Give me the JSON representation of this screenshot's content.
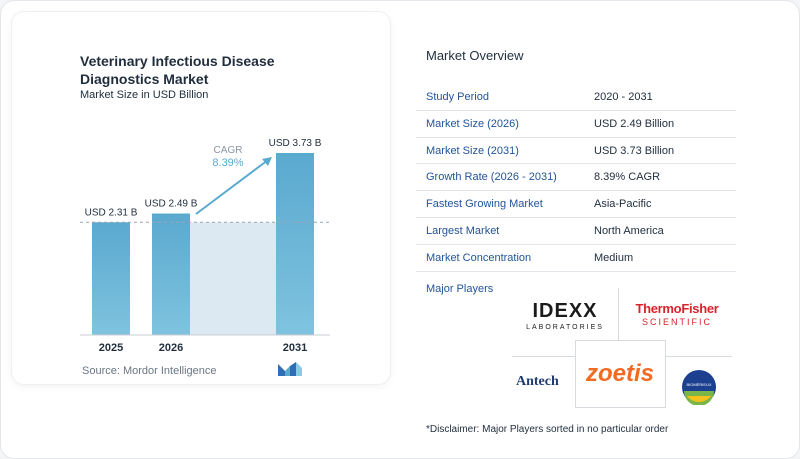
{
  "chart_data": {
    "type": "bar",
    "title": "Veterinary Infectious Disease Diagnostics Market",
    "subtitle": "Market Size in USD Billion",
    "categories": [
      "2025",
      "2026",
      "2031"
    ],
    "values": [
      2.31,
      2.49,
      3.73
    ],
    "data_labels": [
      "USD 2.31 B",
      "USD 2.49 B",
      "USD 3.73 B"
    ],
    "cagr_label": "CAGR",
    "cagr_value": "8.39%",
    "colors": {
      "bar": "#5aa9cf",
      "bar_light": "#7fc3df",
      "band": "#dce9f3",
      "arrow": "#5aa9cf",
      "dashed": "#9aa5b1"
    }
  },
  "source": "Source: Mordor Intelligence",
  "overview": {
    "title": "Market Overview",
    "rows": [
      {
        "label": "Study Period",
        "value": "2020 - 2031"
      },
      {
        "label": "Market Size (2026)",
        "value": "USD 2.49 Billion"
      },
      {
        "label": "Market Size (2031)",
        "value": "USD 3.73 Billion"
      },
      {
        "label": "Growth Rate (2026 - 2031)",
        "value": "8.39% CAGR"
      },
      {
        "label": "Fastest Growing Market",
        "value": "Asia-Pacific"
      },
      {
        "label": "Largest Market",
        "value": "North America"
      },
      {
        "label": "Market Concentration",
        "value": "Medium"
      }
    ]
  },
  "players": {
    "title": "Major Players",
    "idexx": "IDEXX",
    "idexx_sub": "LABORATORIES",
    "thermo": "ThermoFisher",
    "thermo_sub": "SCIENTIFIC",
    "antech": "Antech",
    "zoetis": "zoetis",
    "biomerieux": "BIOMÉRIEUX"
  },
  "disclaimer": "*Disclaimer: Major Players sorted in no particular order"
}
